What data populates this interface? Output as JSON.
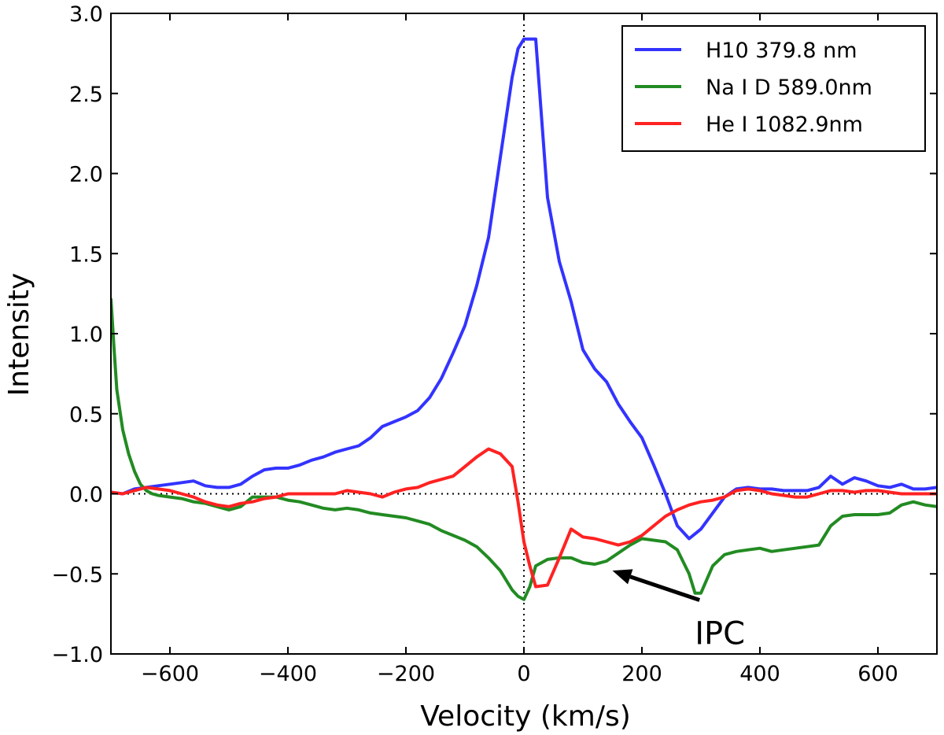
{
  "chart_data": {
    "type": "line",
    "title": "",
    "xlabel": "Velocity (km/s)",
    "ylabel": "Intensity",
    "xlim": [
      -700,
      700
    ],
    "ylim": [
      -1.0,
      3.0
    ],
    "xticks": [
      -600,
      -400,
      -200,
      0,
      200,
      400,
      600
    ],
    "xtick_labels": [
      "−600",
      "−400",
      "−200",
      "0",
      "200",
      "400",
      "600"
    ],
    "yticks": [
      -1.0,
      -0.5,
      0.0,
      0.5,
      1.0,
      1.5,
      2.0,
      2.5,
      3.0
    ],
    "ytick_labels": [
      "−1.0",
      "−0.5",
      "0.0",
      "0.5",
      "1.0",
      "1.5",
      "2.0",
      "2.5",
      "3.0"
    ],
    "grid": false,
    "legend_position": "top-right",
    "reference_lines": [
      {
        "orientation": "horizontal",
        "value": 0.0,
        "style": "dotted"
      },
      {
        "orientation": "vertical",
        "value": 0,
        "style": "dotted"
      }
    ],
    "annotations": [
      {
        "text": "IPC",
        "text_at": [
          295,
          -0.87
        ],
        "arrow_to": [
          150,
          -0.48
        ]
      }
    ],
    "series": [
      {
        "name": "H10 379.8 nm",
        "color": "#3333ff",
        "x": [
          -700,
          -680,
          -660,
          -640,
          -620,
          -600,
          -580,
          -560,
          -540,
          -520,
          -500,
          -480,
          -460,
          -440,
          -420,
          -400,
          -380,
          -360,
          -340,
          -320,
          -300,
          -280,
          -260,
          -240,
          -220,
          -200,
          -180,
          -160,
          -140,
          -120,
          -100,
          -80,
          -60,
          -40,
          -20,
          -10,
          0,
          20,
          40,
          60,
          80,
          100,
          120,
          140,
          160,
          180,
          200,
          220,
          240,
          260,
          280,
          300,
          320,
          340,
          360,
          380,
          400,
          420,
          440,
          460,
          480,
          500,
          520,
          540,
          560,
          580,
          600,
          620,
          640,
          660,
          680,
          700
        ],
        "y": [
          0.01,
          0.0,
          0.03,
          0.04,
          0.05,
          0.06,
          0.07,
          0.08,
          0.05,
          0.04,
          0.04,
          0.06,
          0.11,
          0.15,
          0.16,
          0.16,
          0.18,
          0.21,
          0.23,
          0.26,
          0.28,
          0.3,
          0.35,
          0.42,
          0.45,
          0.48,
          0.52,
          0.6,
          0.72,
          0.88,
          1.05,
          1.3,
          1.6,
          2.1,
          2.6,
          2.78,
          2.84,
          2.84,
          1.85,
          1.45,
          1.2,
          0.9,
          0.78,
          0.7,
          0.56,
          0.45,
          0.35,
          0.18,
          0.0,
          -0.2,
          -0.28,
          -0.22,
          -0.12,
          -0.02,
          0.03,
          0.04,
          0.03,
          0.03,
          0.02,
          0.02,
          0.02,
          0.04,
          0.11,
          0.06,
          0.1,
          0.08,
          0.05,
          0.04,
          0.06,
          0.03,
          0.03,
          0.04
        ]
      },
      {
        "name": "Na I D 589.0nm",
        "color": "#228b22",
        "x": [
          -700,
          -695,
          -690,
          -680,
          -670,
          -660,
          -650,
          -640,
          -630,
          -620,
          -600,
          -580,
          -560,
          -540,
          -520,
          -500,
          -480,
          -460,
          -440,
          -420,
          -400,
          -380,
          -360,
          -340,
          -320,
          -300,
          -280,
          -260,
          -240,
          -220,
          -200,
          -180,
          -160,
          -140,
          -120,
          -100,
          -80,
          -60,
          -40,
          -20,
          -10,
          0,
          10,
          20,
          40,
          60,
          80,
          100,
          120,
          140,
          160,
          180,
          200,
          220,
          240,
          260,
          280,
          290,
          300,
          320,
          340,
          360,
          380,
          400,
          420,
          440,
          460,
          480,
          500,
          520,
          540,
          560,
          580,
          600,
          620,
          640,
          660,
          680,
          700
        ],
        "y": [
          1.22,
          0.92,
          0.65,
          0.4,
          0.25,
          0.14,
          0.06,
          0.02,
          0.0,
          -0.01,
          -0.02,
          -0.03,
          -0.05,
          -0.06,
          -0.08,
          -0.1,
          -0.08,
          -0.02,
          -0.02,
          -0.02,
          -0.04,
          -0.05,
          -0.07,
          -0.09,
          -0.1,
          -0.09,
          -0.1,
          -0.12,
          -0.13,
          -0.14,
          -0.15,
          -0.17,
          -0.19,
          -0.23,
          -0.26,
          -0.29,
          -0.33,
          -0.4,
          -0.48,
          -0.6,
          -0.64,
          -0.66,
          -0.58,
          -0.45,
          -0.41,
          -0.4,
          -0.4,
          -0.43,
          -0.44,
          -0.42,
          -0.37,
          -0.32,
          -0.28,
          -0.29,
          -0.3,
          -0.35,
          -0.5,
          -0.62,
          -0.62,
          -0.45,
          -0.38,
          -0.36,
          -0.35,
          -0.34,
          -0.36,
          -0.35,
          -0.34,
          -0.33,
          -0.32,
          -0.2,
          -0.14,
          -0.13,
          -0.13,
          -0.13,
          -0.12,
          -0.07,
          -0.05,
          -0.07,
          -0.08
        ]
      },
      {
        "name": "He I 1082.9nm",
        "color": "#ff2222",
        "x": [
          -700,
          -680,
          -660,
          -640,
          -620,
          -600,
          -580,
          -560,
          -540,
          -520,
          -500,
          -480,
          -460,
          -440,
          -420,
          -400,
          -380,
          -360,
          -340,
          -320,
          -300,
          -280,
          -260,
          -240,
          -220,
          -200,
          -180,
          -160,
          -140,
          -120,
          -100,
          -80,
          -60,
          -40,
          -20,
          -10,
          0,
          10,
          20,
          40,
          60,
          80,
          100,
          120,
          140,
          160,
          180,
          200,
          220,
          240,
          260,
          280,
          300,
          320,
          340,
          360,
          380,
          400,
          420,
          440,
          460,
          480,
          500,
          520,
          540,
          560,
          580,
          600,
          620,
          640,
          660,
          680,
          700
        ],
        "y": [
          0.01,
          0.0,
          0.02,
          0.04,
          0.03,
          0.02,
          0.0,
          -0.02,
          -0.05,
          -0.07,
          -0.08,
          -0.06,
          -0.05,
          -0.03,
          -0.02,
          0.0,
          0.0,
          0.0,
          0.0,
          0.0,
          0.02,
          0.01,
          0.0,
          -0.02,
          0.01,
          0.03,
          0.04,
          0.07,
          0.09,
          0.11,
          0.17,
          0.23,
          0.28,
          0.25,
          0.17,
          -0.05,
          -0.3,
          -0.45,
          -0.58,
          -0.57,
          -0.4,
          -0.22,
          -0.27,
          -0.28,
          -0.3,
          -0.32,
          -0.3,
          -0.26,
          -0.2,
          -0.14,
          -0.1,
          -0.07,
          -0.05,
          -0.04,
          -0.02,
          0.02,
          0.03,
          0.02,
          0.0,
          -0.01,
          -0.02,
          -0.02,
          0.0,
          0.02,
          0.02,
          0.01,
          0.02,
          0.02,
          0.01,
          0.0,
          0.0,
          0.0,
          0.0
        ]
      }
    ]
  }
}
